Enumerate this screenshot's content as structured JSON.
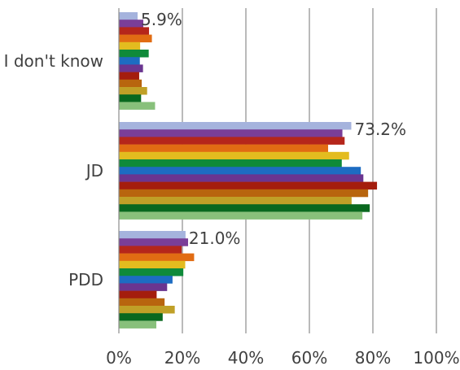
{
  "chart_data": {
    "type": "bar",
    "orientation": "horizontal",
    "categories": [
      "I don't know",
      "JD",
      "PDD"
    ],
    "xlim": [
      0,
      100
    ],
    "x_ticks": [
      "0%",
      "20%",
      "40%",
      "60%",
      "80%",
      "100%"
    ],
    "x_tick_values": [
      0,
      20,
      40,
      60,
      80,
      100
    ],
    "grid": "vertical",
    "legend": "none",
    "series_colors": [
      "#a5b3dd",
      "#7a3e98",
      "#b5261b",
      "#e16c13",
      "#e3bc1f",
      "#0f8a3a",
      "#1d6cc2",
      "#6a3590",
      "#a41d0d",
      "#b8650e",
      "#c0a027",
      "#09681f",
      "#88c07b"
    ],
    "values": [
      [
        5.9,
        7.7,
        9.5,
        10.4,
        6.7,
        9.4,
        6.6,
        7.6,
        6.4,
        7.2,
        8.9,
        7.0,
        11.4
      ],
      [
        73.2,
        70.4,
        71.1,
        65.9,
        72.5,
        70.2,
        76.2,
        77.0,
        81.3,
        78.5,
        73.3,
        79.0,
        76.7
      ],
      [
        21.0,
        21.8,
        19.8,
        23.7,
        20.9,
        20.3,
        16.9,
        15.2,
        11.9,
        14.4,
        17.6,
        13.8,
        11.8
      ]
    ],
    "data_labels": [
      "5.9%",
      "73.2%",
      "21.0%"
    ]
  }
}
